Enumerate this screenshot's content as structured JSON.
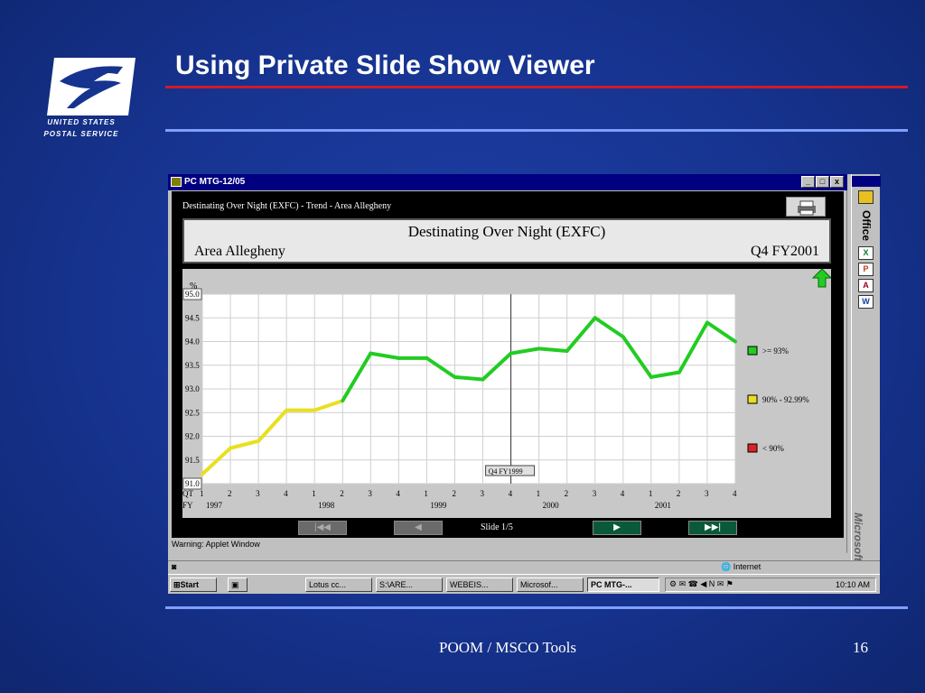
{
  "slide": {
    "title": "Using Private Slide Show Viewer",
    "logo_line1": "UNITED STATES",
    "logo_line2": "POSTAL SERVICE",
    "footer_center": "POOM / MSCO Tools",
    "page_number": "16",
    "colors": {
      "background": "#16338f",
      "red_rule": "#d11a2a",
      "blue_rule": "#7fa0ff"
    }
  },
  "window": {
    "title": "PC MTG-12/05",
    "buttons": [
      "_",
      "□",
      "x"
    ],
    "applet_title": "Destinating Over Night (EXFC) - Trend - Area Allegheny",
    "print_icon": "printer-icon",
    "warning": "Warning: Applet Window",
    "status_zone": "Internet"
  },
  "report": {
    "heading": "Destinating Over Night (EXFC)",
    "area": "Area Allegheny",
    "quarter": "Q4 FY2001",
    "trend_icon": "green-up-arrow-icon",
    "slide_label": "Slide 1/5",
    "nav": {
      "first": "|◀◀",
      "prev": "◀",
      "next": "▶",
      "last": "▶▶|"
    }
  },
  "chart_data": {
    "type": "line",
    "ylabel": "%",
    "ylim": [
      91.0,
      95.0
    ],
    "y_ticks": [
      "95.0",
      "94.5",
      "94.0",
      "93.5",
      "93.0",
      "92.5",
      "92.0",
      "91.5",
      "91.0"
    ],
    "row_label_qt": "QT",
    "row_label_fy": "FY",
    "quarters": [
      "1",
      "2",
      "3",
      "4",
      "1",
      "2",
      "3",
      "4",
      "1",
      "2",
      "3",
      "4",
      "1",
      "2",
      "3",
      "4",
      "1",
      "2",
      "3",
      "4"
    ],
    "years": [
      "1997",
      "1998",
      "1999",
      "2000",
      "2001"
    ],
    "values": [
      91.2,
      91.75,
      91.9,
      92.55,
      92.55,
      92.75,
      93.75,
      93.65,
      93.65,
      93.25,
      93.2,
      93.75,
      93.85,
      93.8,
      94.5,
      94.1,
      93.25,
      93.35,
      94.4,
      94.0
    ],
    "annotation": "Q4 FY1999",
    "grid": true,
    "legend": [
      {
        "label": ">= 93%",
        "color": "#22cc22"
      },
      {
        "label": "90% - 92.99%",
        "color": "#e8e020"
      },
      {
        "label": "< 90%",
        "color": "#dd2222"
      }
    ],
    "legend_position": "right"
  },
  "office": {
    "label": "Office",
    "brand": "Microsoft",
    "icons": [
      "folder-icon",
      "excel-icon",
      "powerpoint-icon",
      "access-icon",
      "word-icon"
    ]
  },
  "taskbar": {
    "start": "Start",
    "items": [
      "Lotus cc...",
      "S:\\ARE...",
      "WEBEIS...",
      "Microsof...",
      "PC MTG-..."
    ],
    "time": "10:10 AM"
  }
}
